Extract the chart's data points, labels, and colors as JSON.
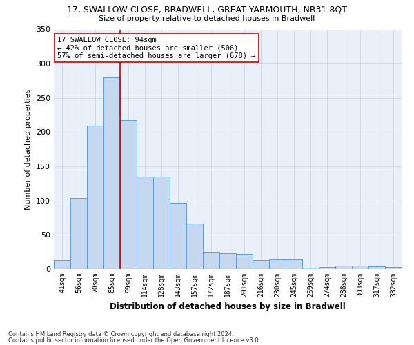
{
  "title1": "17, SWALLOW CLOSE, BRADWELL, GREAT YARMOUTH, NR31 8QT",
  "title2": "Size of property relative to detached houses in Bradwell",
  "xlabel": "Distribution of detached houses by size in Bradwell",
  "ylabel": "Number of detached properties",
  "categories": [
    "41sqm",
    "56sqm",
    "70sqm",
    "85sqm",
    "99sqm",
    "114sqm",
    "128sqm",
    "143sqm",
    "157sqm",
    "172sqm",
    "187sqm",
    "201sqm",
    "216sqm",
    "230sqm",
    "245sqm",
    "259sqm",
    "274sqm",
    "288sqm",
    "303sqm",
    "317sqm",
    "332sqm"
  ],
  "values": [
    13,
    104,
    210,
    280,
    218,
    135,
    135,
    97,
    66,
    25,
    23,
    22,
    13,
    14,
    14,
    2,
    3,
    5,
    5,
    4,
    3
  ],
  "bar_color": "#c5d8f0",
  "bar_edge_color": "#5a9fd4",
  "grid_color": "#d0dce8",
  "bg_color": "#eaf0f8",
  "annotation_box_color": "#ffffff",
  "annotation_border_color": "#cc0000",
  "line_color": "#cc0000",
  "line_x_index": 3.5,
  "annotation_text": "17 SWALLOW CLOSE: 94sqm\n← 42% of detached houses are smaller (506)\n57% of semi-detached houses are larger (678) →",
  "footer1": "Contains HM Land Registry data © Crown copyright and database right 2024.",
  "footer2": "Contains public sector information licensed under the Open Government Licence v3.0.",
  "ylim": [
    0,
    350
  ],
  "yticks": [
    0,
    50,
    100,
    150,
    200,
    250,
    300,
    350
  ]
}
